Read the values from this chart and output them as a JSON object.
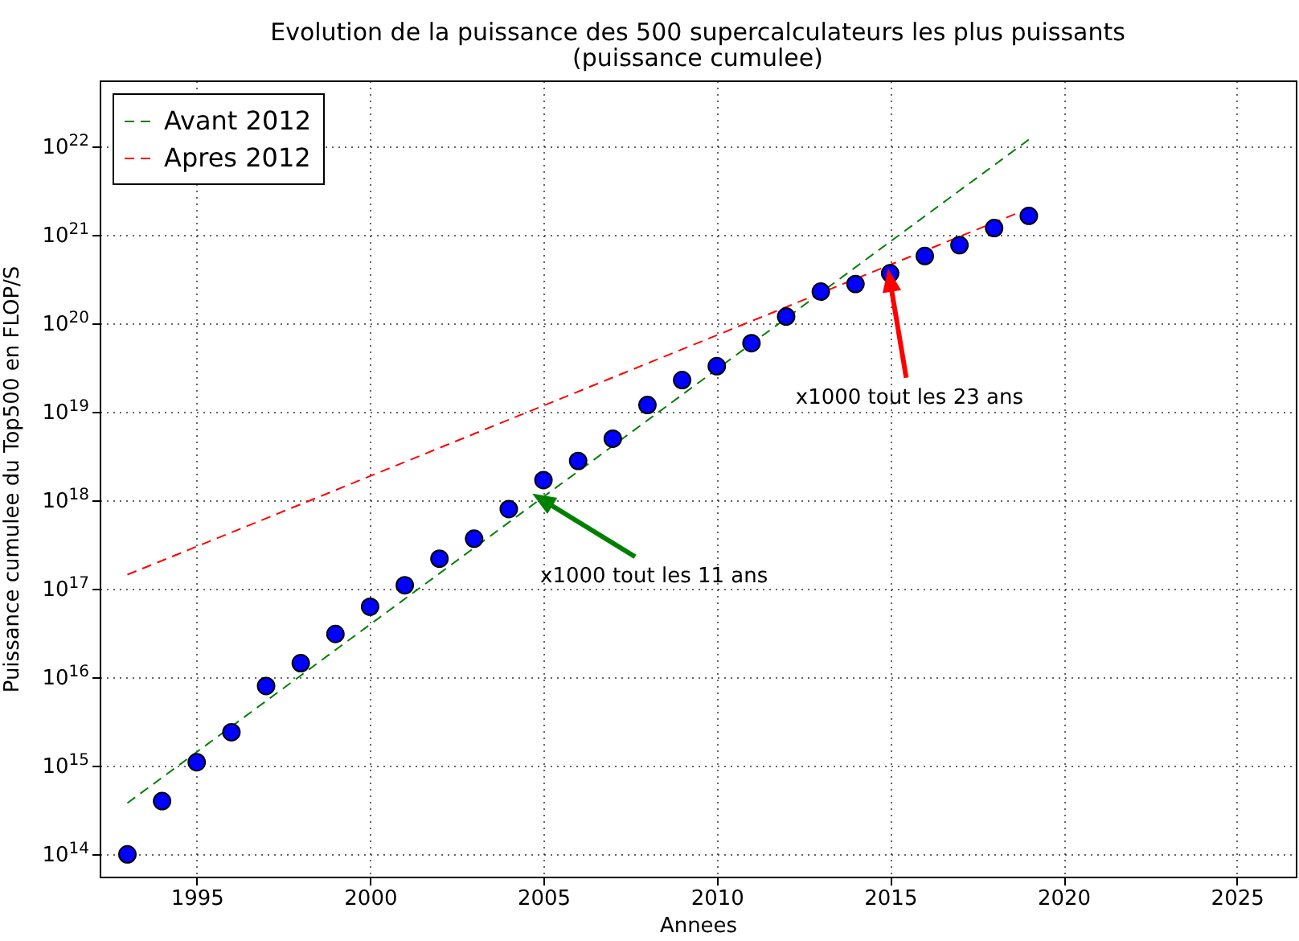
{
  "chart_data": {
    "type": "scatter",
    "title": "Evolution de la puissance des 500 supercalculateurs les plus puissants",
    "subtitle": "(puissance cumulee)",
    "xlabel": "Annees",
    "ylabel": "Puissance cumulee du Top500 en FLOP/S",
    "log": "y",
    "grid": true,
    "legend": "top left",
    "xlim": [
      1992.2,
      2026.7
    ],
    "xticks": [
      1995,
      2000,
      2005,
      2010,
      2015,
      2020,
      2025
    ],
    "ylim": [
      56000000000000.0,
      5.6e+22
    ],
    "yticks": [
      {
        "value": 100000000000000.0,
        "label": "10$^{14}$"
      },
      {
        "value": 1000000000000000.0,
        "label": "10$^{15}$"
      },
      {
        "value": 1e+16,
        "label": "10$^{16}$"
      },
      {
        "value": 1e+17,
        "label": "10$^{17}$"
      },
      {
        "value": 1e+18,
        "label": "10$^{18}$"
      },
      {
        "value": 1e+19,
        "label": "10$^{19}$"
      },
      {
        "value": 1e+20,
        "label": "10$^{20}$"
      },
      {
        "value": 1e+21,
        "label": "10$^{21}$"
      },
      {
        "value": 1e+22,
        "label": "10$^{22}$"
      }
    ],
    "series": [
      {
        "marker": "circle",
        "color": "#0000ff",
        "x": [
          1993,
          1994,
          1995,
          1996,
          1997,
          1998,
          1999,
          2000,
          2001,
          2002,
          2003,
          2004,
          2005,
          2006,
          2007,
          2008,
          2009,
          2010,
          2011,
          2012,
          2013,
          2014,
          2015,
          2016,
          2017,
          2018,
          2019
        ],
        "values": [
          100000000000000.0,
          400000000000000.0,
          1100000000000000.0,
          2400000000000000.0,
          8000000000000000.0,
          1.45e+16,
          3.1e+16,
          6.3e+16,
          1.1e+17,
          2.2e+17,
          3.7e+17,
          8e+17,
          1.7e+18,
          2.8e+18,
          5e+18,
          1.2e+19,
          2.3e+19,
          3.3e+19,
          6e+19,
          1.2e+20,
          2.3e+20,
          2.8e+20,
          3.7e+20,
          5.8e+20,
          7.7e+20,
          1.2e+21,
          1.65e+21
        ]
      },
      {
        "type": "line",
        "name": "Avant 2012",
        "color": "#008000",
        "line_style": "dashed",
        "x": [
          1993,
          2019
        ],
        "values": [
          380000000000000.0,
          1.2e+22
        ]
      },
      {
        "type": "line",
        "name": "Apres 2012",
        "color": "#ff0000",
        "line_style": "dashed",
        "x": [
          1993,
          2019
        ],
        "values": [
          1.45e+17,
          2e+21
        ]
      }
    ],
    "annotations": [
      {
        "text": "x1000 tout les 11 ans",
        "x": 2005,
        "y": 1e+18
      },
      {
        "text": "x1000 tout les 23 ans",
        "x": 2015,
        "y": 3e+20
      }
    ]
  }
}
